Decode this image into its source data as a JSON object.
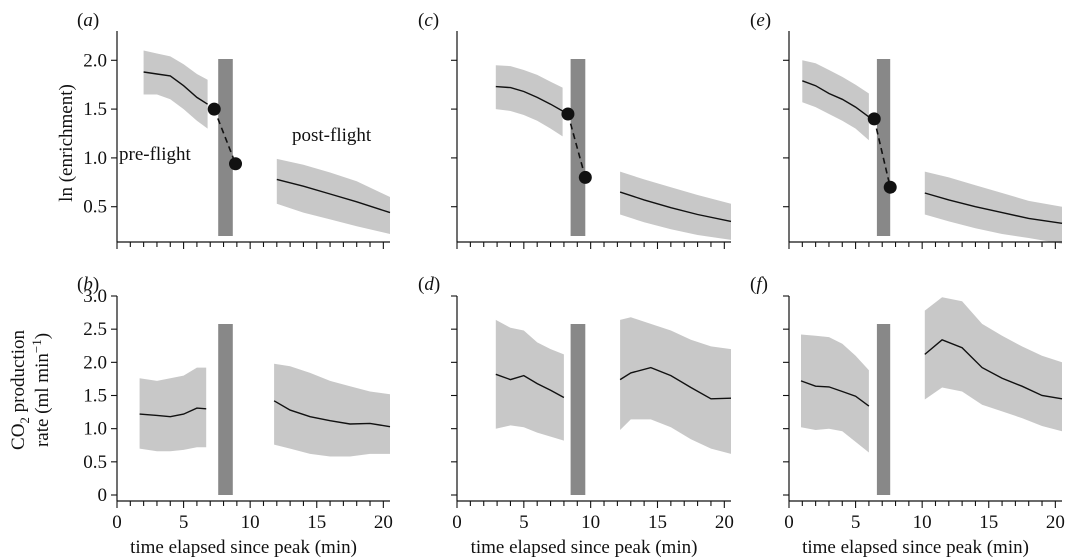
{
  "colors": {
    "band": "#c8c8c8",
    "flight_bar": "#888888",
    "line": "#111111"
  },
  "chart_data": [
    {
      "panel": "(a)",
      "type": "line",
      "xlabel": "",
      "ylabel": "ln (enrichment)",
      "xlim": [
        0,
        20.5
      ],
      "ylim": [
        0.2,
        2.3
      ],
      "yticks": [
        "0.5",
        "1.0",
        "1.5",
        "2.0"
      ],
      "annotations": [
        "pre-flight",
        "post-flight"
      ],
      "flight_bar": [
        7.6,
        8.7
      ],
      "series": [
        {
          "segment": "pre-flight",
          "x": [
            2.0,
            3.0,
            4.0,
            5.0,
            6.0,
            6.8
          ],
          "mean": [
            1.88,
            1.86,
            1.84,
            1.74,
            1.62,
            1.55
          ],
          "lower": [
            1.65,
            1.65,
            1.6,
            1.5,
            1.38,
            1.3
          ],
          "upper": [
            2.1,
            2.07,
            2.04,
            1.96,
            1.86,
            1.8
          ]
        },
        {
          "segment": "post-flight",
          "x": [
            12.0,
            14.0,
            16.0,
            18.0,
            20.5
          ],
          "mean": [
            0.78,
            0.71,
            0.63,
            0.55,
            0.44
          ],
          "lower": [
            0.53,
            0.44,
            0.37,
            0.3,
            0.22
          ],
          "upper": [
            0.99,
            0.93,
            0.85,
            0.76,
            0.6
          ]
        }
      ],
      "points": [
        {
          "x": 7.3,
          "y": 1.5
        },
        {
          "x": 8.9,
          "y": 0.94
        }
      ]
    },
    {
      "panel": "(b)",
      "type": "line",
      "xlabel": "time elapsed since peak (min)",
      "ylabel": "CO2 production rate (ml min−1)",
      "xlim": [
        0,
        20.5
      ],
      "ylim": [
        0,
        3.0
      ],
      "xticks": [
        "0",
        "5",
        "10",
        "15",
        "20"
      ],
      "yticks": [
        "0",
        "0.5",
        "1.0",
        "1.5",
        "2.0",
        "2.5",
        "3.0"
      ],
      "flight_bar": [
        7.6,
        8.7
      ],
      "series": [
        {
          "segment": "pre-flight",
          "x": [
            1.7,
            3.0,
            4.0,
            5.0,
            6.0,
            6.7
          ],
          "mean": [
            1.22,
            1.2,
            1.18,
            1.22,
            1.31,
            1.3
          ],
          "lower": [
            0.7,
            0.66,
            0.66,
            0.68,
            0.72,
            0.72
          ],
          "upper": [
            1.76,
            1.72,
            1.76,
            1.8,
            1.92,
            1.92
          ]
        },
        {
          "segment": "post-flight",
          "x": [
            11.8,
            13.0,
            14.5,
            16.0,
            17.5,
            19.0,
            20.5
          ],
          "mean": [
            1.42,
            1.28,
            1.18,
            1.12,
            1.07,
            1.08,
            1.03
          ],
          "lower": [
            0.76,
            0.7,
            0.62,
            0.58,
            0.58,
            0.62,
            0.62
          ],
          "upper": [
            1.98,
            1.94,
            1.84,
            1.72,
            1.64,
            1.56,
            1.52
          ]
        }
      ]
    },
    {
      "panel": "(c)",
      "type": "line",
      "xlabel": "",
      "ylabel": "",
      "xlim": [
        0,
        20.5
      ],
      "ylim": [
        0.2,
        2.3
      ],
      "flight_bar": [
        8.5,
        9.6
      ],
      "series": [
        {
          "segment": "pre-flight",
          "x": [
            2.9,
            4.0,
            5.0,
            6.0,
            7.0,
            7.9
          ],
          "mean": [
            1.73,
            1.72,
            1.68,
            1.62,
            1.55,
            1.48
          ],
          "lower": [
            1.5,
            1.48,
            1.44,
            1.38,
            1.3,
            1.22
          ],
          "upper": [
            1.95,
            1.94,
            1.9,
            1.85,
            1.78,
            1.72
          ]
        },
        {
          "segment": "post-flight",
          "x": [
            12.2,
            14.0,
            16.0,
            18.0,
            20.5
          ],
          "mean": [
            0.65,
            0.57,
            0.49,
            0.42,
            0.35
          ],
          "lower": [
            0.42,
            0.34,
            0.27,
            0.21,
            0.16
          ],
          "upper": [
            0.86,
            0.78,
            0.7,
            0.62,
            0.53
          ]
        }
      ],
      "points": [
        {
          "x": 8.3,
          "y": 1.45
        },
        {
          "x": 9.6,
          "y": 0.8
        }
      ]
    },
    {
      "panel": "(d)",
      "type": "line",
      "xlabel": "time elapsed since peak (min)",
      "ylabel": "",
      "xlim": [
        0,
        20.5
      ],
      "ylim": [
        0,
        3.0
      ],
      "xticks": [
        "0",
        "5",
        "10",
        "15",
        "20"
      ],
      "flight_bar": [
        8.5,
        9.6
      ],
      "series": [
        {
          "segment": "pre-flight",
          "x": [
            2.9,
            4.0,
            5.0,
            6.0,
            7.0,
            8.0
          ],
          "mean": [
            1.82,
            1.74,
            1.8,
            1.68,
            1.58,
            1.47
          ],
          "lower": [
            1.0,
            1.05,
            1.02,
            0.94,
            0.88,
            0.82
          ],
          "upper": [
            2.64,
            2.52,
            2.48,
            2.3,
            2.2,
            2.12
          ]
        },
        {
          "segment": "post-flight",
          "x": [
            12.2,
            13.0,
            14.5,
            16.0,
            17.5,
            19.0,
            20.5
          ],
          "mean": [
            1.74,
            1.84,
            1.92,
            1.8,
            1.62,
            1.45,
            1.46
          ],
          "lower": [
            0.98,
            1.14,
            1.14,
            1.02,
            0.84,
            0.7,
            0.62
          ],
          "upper": [
            2.64,
            2.68,
            2.58,
            2.48,
            2.34,
            2.24,
            2.2
          ]
        }
      ]
    },
    {
      "panel": "(e)",
      "type": "line",
      "xlabel": "",
      "ylabel": "",
      "xlim": [
        0,
        20.5
      ],
      "ylim": [
        0.2,
        2.3
      ],
      "flight_bar": [
        6.6,
        7.6
      ],
      "series": [
        {
          "segment": "pre-flight",
          "x": [
            1.0,
            2.0,
            3.0,
            4.0,
            5.0,
            6.0
          ],
          "mean": [
            1.79,
            1.74,
            1.66,
            1.6,
            1.52,
            1.42
          ],
          "lower": [
            1.57,
            1.52,
            1.45,
            1.38,
            1.3,
            1.18
          ],
          "upper": [
            2.0,
            1.97,
            1.9,
            1.83,
            1.75,
            1.66
          ]
        },
        {
          "segment": "post-flight",
          "x": [
            10.2,
            12.0,
            14.0,
            16.0,
            18.0,
            20.5
          ],
          "mean": [
            0.64,
            0.57,
            0.5,
            0.44,
            0.38,
            0.33
          ],
          "lower": [
            0.42,
            0.35,
            0.28,
            0.22,
            0.18,
            0.12
          ],
          "upper": [
            0.86,
            0.8,
            0.72,
            0.64,
            0.56,
            0.5
          ]
        }
      ],
      "points": [
        {
          "x": 6.4,
          "y": 1.4
        },
        {
          "x": 7.6,
          "y": 0.7
        }
      ]
    },
    {
      "panel": "(f)",
      "type": "line",
      "xlabel": "time elapsed since peak (min)",
      "ylabel": "",
      "xlim": [
        0,
        20.5
      ],
      "ylim": [
        0,
        3.0
      ],
      "xticks": [
        "0",
        "5",
        "10",
        "15",
        "20"
      ],
      "flight_bar": [
        6.6,
        7.6
      ],
      "series": [
        {
          "segment": "pre-flight",
          "x": [
            0.9,
            2.0,
            3.0,
            4.0,
            5.0,
            6.0
          ],
          "mean": [
            1.72,
            1.64,
            1.63,
            1.56,
            1.49,
            1.34
          ],
          "lower": [
            1.02,
            0.98,
            1.0,
            0.96,
            0.8,
            0.64
          ],
          "upper": [
            2.42,
            2.4,
            2.38,
            2.28,
            2.1,
            1.88
          ]
        },
        {
          "segment": "post-flight",
          "x": [
            10.2,
            11.5,
            13.0,
            14.5,
            16.0,
            17.5,
            19.0,
            20.5
          ],
          "mean": [
            2.12,
            2.34,
            2.22,
            1.92,
            1.76,
            1.64,
            1.5,
            1.45
          ],
          "lower": [
            1.44,
            1.62,
            1.56,
            1.36,
            1.26,
            1.16,
            1.04,
            0.96
          ],
          "upper": [
            2.78,
            2.98,
            2.92,
            2.58,
            2.4,
            2.24,
            2.1,
            2.0
          ]
        }
      ]
    }
  ]
}
